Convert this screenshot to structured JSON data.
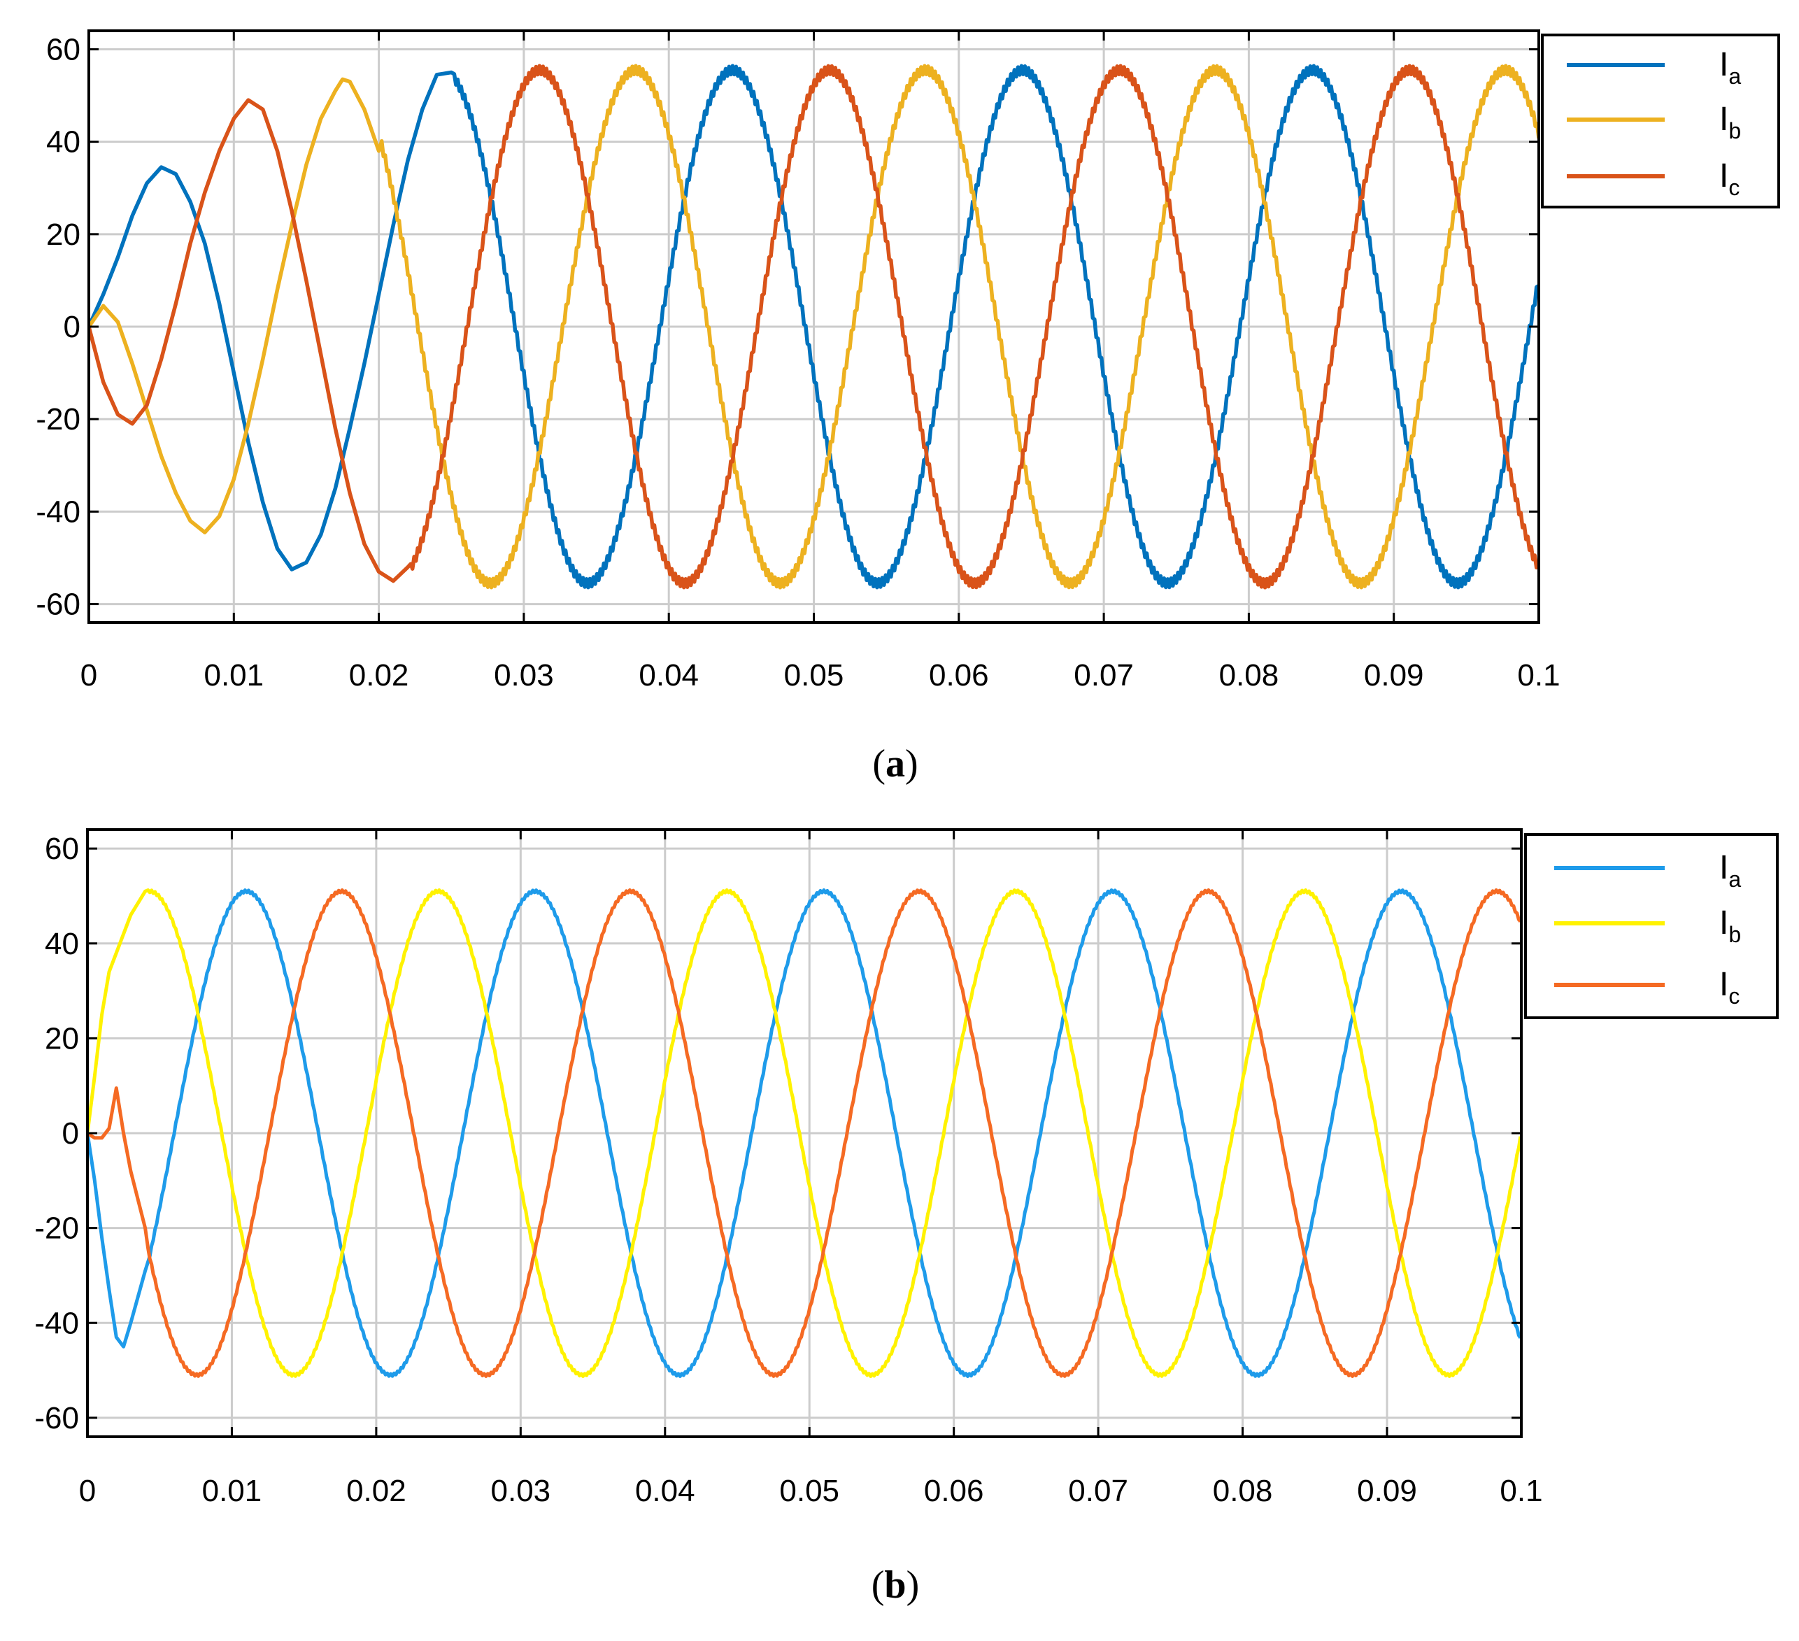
{
  "colors": {
    "a_Ia": "#0072BD",
    "a_Ib": "#EDB120",
    "a_Ic": "#D95319",
    "b_Ia": "#1E9BEA",
    "b_Ib": "#FFF200",
    "b_Ic": "#F56A23",
    "grid": "#cccccc",
    "axes": "#000000"
  },
  "chart_data": [
    {
      "type": "line",
      "caption": {
        "open": "(",
        "letter": "a",
        "close": ")"
      },
      "xlim": [
        0,
        0.1
      ],
      "ylim": [
        -64,
        64
      ],
      "xticks": [
        0,
        0.01,
        0.02,
        0.03,
        0.04,
        0.05,
        0.06,
        0.07,
        0.08,
        0.09,
        0.1
      ],
      "xtick_labels": [
        "0",
        "0.01",
        "0.02",
        "0.03",
        "0.04",
        "0.05",
        "0.06",
        "0.07",
        "0.08",
        "0.09",
        "0.1"
      ],
      "yticks": [
        60,
        40,
        20,
        0,
        -20,
        -40,
        -60
      ],
      "ytick_labels": [
        "60",
        "40",
        "20",
        "0",
        "-20",
        "-40",
        "-60"
      ],
      "grid": true,
      "legend_position": "outside top-right",
      "series": [
        {
          "name": "I",
          "subscript": "a",
          "color": "#0072BD",
          "points": [
            [
              0,
              0
            ],
            [
              0.001,
              7
            ],
            [
              0.002,
              15
            ],
            [
              0.003,
              24
            ],
            [
              0.004,
              31
            ],
            [
              0.005,
              34.5
            ],
            [
              0.006,
              33
            ],
            [
              0.007,
              27
            ],
            [
              0.008,
              18
            ],
            [
              0.009,
              5
            ],
            [
              0.01,
              -10
            ],
            [
              0.011,
              -25
            ],
            [
              0.012,
              -38
            ],
            [
              0.013,
              -48
            ],
            [
              0.014,
              -52.5
            ],
            [
              0.015,
              -51
            ],
            [
              0.016,
              -45
            ],
            [
              0.017,
              -35
            ],
            [
              0.018,
              -22
            ],
            [
              0.019,
              -8
            ],
            [
              0.02,
              7
            ],
            [
              0.021,
              22
            ],
            [
              0.022,
              36
            ],
            [
              0.023,
              47
            ],
            [
              0.024,
              54.5
            ],
            [
              0.025,
              55
            ]
          ],
          "steady": {
            "amplitude": 55.5,
            "period": 0.02,
            "peak_t": 0.0244,
            "start": 0.025
          }
        },
        {
          "name": "I",
          "subscript": "b",
          "color": "#EDB120",
          "points": [
            [
              0,
              0
            ],
            [
              0.001,
              4.5
            ],
            [
              0.002,
              1
            ],
            [
              0.003,
              -8
            ],
            [
              0.004,
              -18
            ],
            [
              0.005,
              -28
            ],
            [
              0.006,
              -36
            ],
            [
              0.007,
              -42
            ],
            [
              0.008,
              -44.5
            ],
            [
              0.009,
              -41
            ],
            [
              0.01,
              -33
            ],
            [
              0.011,
              -21
            ],
            [
              0.012,
              -7
            ],
            [
              0.013,
              8
            ],
            [
              0.014,
              22
            ],
            [
              0.015,
              35
            ],
            [
              0.016,
              45
            ],
            [
              0.017,
              51
            ],
            [
              0.0175,
              53.5
            ],
            [
              0.018,
              53
            ],
            [
              0.019,
              47
            ],
            [
              0.02,
              38
            ]
          ],
          "steady": {
            "amplitude": 55.5,
            "period": 0.02,
            "peak_t": 0.0177,
            "start": 0.02
          }
        },
        {
          "name": "I",
          "subscript": "c",
          "color": "#D95319",
          "points": [
            [
              0,
              0
            ],
            [
              0.001,
              -12
            ],
            [
              0.002,
              -19
            ],
            [
              0.003,
              -21
            ],
            [
              0.004,
              -17
            ],
            [
              0.005,
              -7
            ],
            [
              0.006,
              5
            ],
            [
              0.007,
              18
            ],
            [
              0.008,
              29
            ],
            [
              0.009,
              38
            ],
            [
              0.01,
              45
            ],
            [
              0.011,
              49
            ],
            [
              0.012,
              47
            ],
            [
              0.013,
              38
            ],
            [
              0.014,
              25
            ],
            [
              0.015,
              10
            ],
            [
              0.016,
              -6
            ],
            [
              0.017,
              -22
            ],
            [
              0.018,
              -36
            ],
            [
              0.019,
              -47
            ],
            [
              0.02,
              -53
            ],
            [
              0.021,
              -55
            ],
            [
              0.022,
              -52
            ]
          ],
          "steady": {
            "amplitude": 55.5,
            "period": 0.02,
            "peak_t": 0.0311,
            "start": 0.022
          }
        }
      ]
    },
    {
      "type": "line",
      "caption": {
        "open": "(",
        "letter": "b",
        "close": ")"
      },
      "xlim": [
        0,
        0.0993
      ],
      "ylim": [
        -64,
        64
      ],
      "xticks": [
        0,
        0.01,
        0.02,
        0.03,
        0.04,
        0.05,
        0.06,
        0.07,
        0.08,
        0.09,
        0.1
      ],
      "xtick_labels": [
        "0",
        "0.01",
        "0.02",
        "0.03",
        "0.04",
        "0.05",
        "0.06",
        "0.07",
        "0.08",
        "0.09",
        "0.1"
      ],
      "yticks": [
        60,
        40,
        20,
        0,
        -20,
        -40,
        -60
      ],
      "ytick_labels": [
        "60",
        "40",
        "20",
        "0",
        "-20",
        "-40",
        "-60"
      ],
      "grid": true,
      "legend_position": "outside top-right",
      "series": [
        {
          "name": "I",
          "subscript": "a",
          "color": "#1E9BEA",
          "points": [
            [
              0,
              0
            ],
            [
              0.0005,
              -10
            ],
            [
              0.001,
              -22
            ],
            [
              0.0015,
              -33
            ],
            [
              0.002,
              -43
            ],
            [
              0.0025,
              -45
            ],
            [
              0.003,
              -40
            ],
            [
              0.004,
              -29
            ]
          ],
          "steady": {
            "amplitude": 51,
            "period": 0.02,
            "peak_t": 0.011,
            "start": 0.004
          }
        },
        {
          "name": "I",
          "subscript": "b",
          "color": "#FFF200",
          "points": [
            [
              0,
              0
            ],
            [
              0.0005,
              12
            ],
            [
              0.001,
              25
            ],
            [
              0.0015,
              34
            ],
            [
              0.002,
              38
            ],
            [
              0.003,
              46
            ],
            [
              0.004,
              51
            ]
          ],
          "steady": {
            "amplitude": 51,
            "period": 0.02,
            "peak_t": 0.0043,
            "start": 0.004
          }
        },
        {
          "name": "I",
          "subscript": "c",
          "color": "#F56A23",
          "points": [
            [
              0,
              0
            ],
            [
              0.0005,
              -1
            ],
            [
              0.001,
              -1
            ],
            [
              0.0015,
              1
            ],
            [
              0.002,
              9.5
            ],
            [
              0.0025,
              0
            ],
            [
              0.003,
              -8
            ],
            [
              0.004,
              -20
            ]
          ],
          "steady": {
            "amplitude": 51,
            "period": 0.02,
            "peak_t": 0.0176,
            "start": 0.004
          }
        }
      ]
    }
  ]
}
